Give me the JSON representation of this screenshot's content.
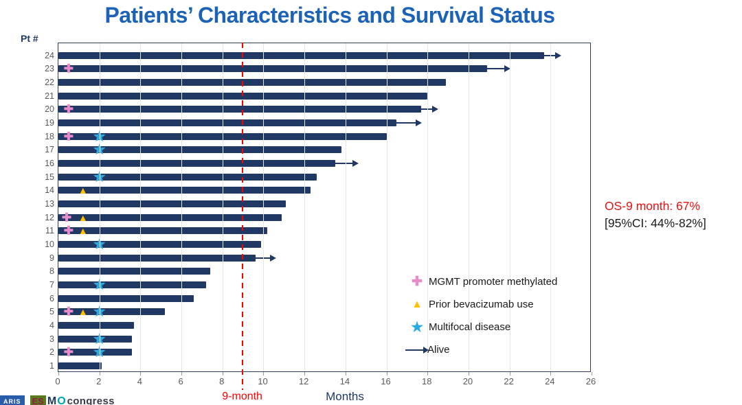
{
  "title": "Patients’ Characteristics and Survival Status",
  "annotation": {
    "os": "OS-9 month: 67%",
    "ci": "[95%CI: 44%-82%]"
  },
  "footer": {
    "logo_paris_fragment": "ARIS",
    "logo_es": "ES",
    "logo_m": "M",
    "logo_o": "O",
    "congress": "congress"
  },
  "colors": {
    "title": "#1C63B8",
    "bar": "#1F3864",
    "reference_line": "#FF0000",
    "mgmt": "#E78BCB",
    "bev": "#FFC000",
    "multifocal": "#29ABE2",
    "axis_text": "#595959",
    "gridline": "#E7E7E7"
  },
  "chart_data": {
    "type": "bar",
    "orientation": "horizontal",
    "xlabel": "Months",
    "ylabel_header": "Pt #",
    "xlim": [
      0,
      26
    ],
    "x_ticks": [
      0,
      2,
      4,
      6,
      8,
      10,
      12,
      14,
      16,
      18,
      20,
      22,
      24,
      26
    ],
    "grid": "vertical-light",
    "reference_line": {
      "x": 9,
      "label": "9-month",
      "style": "dashed",
      "color": "#FF0000"
    },
    "legend_position": "inside-lower-right",
    "legend": [
      {
        "marker": "mgmt",
        "label": "MGMT promoter methylated",
        "color": "#E78BCB"
      },
      {
        "marker": "bev",
        "label": "Prior bevacizumab use",
        "color": "#FFC000"
      },
      {
        "marker": "multifocal",
        "label": "Multifocal disease",
        "color": "#29ABE2"
      },
      {
        "marker": "alive",
        "label": "Alive",
        "color": "#1F3864"
      }
    ],
    "patients": [
      {
        "pt": 24,
        "months": 23.7,
        "alive": true,
        "arrow_to": 24.5,
        "markers": []
      },
      {
        "pt": 23,
        "months": 20.9,
        "alive": true,
        "arrow_to": 22.0,
        "markers": [
          {
            "type": "mgmt",
            "x": 0.5
          }
        ]
      },
      {
        "pt": 22,
        "months": 18.9,
        "alive": false,
        "markers": []
      },
      {
        "pt": 21,
        "months": 18.0,
        "alive": false,
        "markers": []
      },
      {
        "pt": 20,
        "months": 17.7,
        "alive": true,
        "arrow_to": 18.5,
        "markers": [
          {
            "type": "mgmt",
            "x": 0.5
          }
        ]
      },
      {
        "pt": 19,
        "months": 16.5,
        "alive": true,
        "arrow_to": 17.7,
        "markers": []
      },
      {
        "pt": 18,
        "months": 16.0,
        "alive": false,
        "markers": [
          {
            "type": "mgmt",
            "x": 0.5
          },
          {
            "type": "multifocal",
            "x": 2
          }
        ]
      },
      {
        "pt": 17,
        "months": 13.8,
        "alive": false,
        "markers": [
          {
            "type": "multifocal",
            "x": 2
          }
        ]
      },
      {
        "pt": 16,
        "months": 13.5,
        "alive": true,
        "arrow_to": 14.6,
        "markers": []
      },
      {
        "pt": 15,
        "months": 12.6,
        "alive": false,
        "markers": [
          {
            "type": "multifocal",
            "x": 2
          }
        ]
      },
      {
        "pt": 14,
        "months": 12.3,
        "alive": false,
        "markers": [
          {
            "type": "bev",
            "x": 1.2
          }
        ]
      },
      {
        "pt": 13,
        "months": 11.1,
        "alive": false,
        "markers": []
      },
      {
        "pt": 12,
        "months": 10.9,
        "alive": false,
        "markers": [
          {
            "type": "mgmt",
            "x": 0.4
          },
          {
            "type": "bev",
            "x": 1.2
          }
        ]
      },
      {
        "pt": 11,
        "months": 10.2,
        "alive": false,
        "markers": [
          {
            "type": "mgmt",
            "x": 0.5
          },
          {
            "type": "bev",
            "x": 1.2
          }
        ]
      },
      {
        "pt": 10,
        "months": 9.9,
        "alive": false,
        "markers": [
          {
            "type": "multifocal",
            "x": 2
          }
        ]
      },
      {
        "pt": 9,
        "months": 9.6,
        "alive": true,
        "arrow_to": 10.6,
        "markers": []
      },
      {
        "pt": 8,
        "months": 7.4,
        "alive": false,
        "markers": []
      },
      {
        "pt": 7,
        "months": 7.2,
        "alive": false,
        "markers": [
          {
            "type": "multifocal",
            "x": 2
          }
        ]
      },
      {
        "pt": 6,
        "months": 6.6,
        "alive": false,
        "markers": []
      },
      {
        "pt": 5,
        "months": 5.2,
        "alive": false,
        "markers": [
          {
            "type": "mgmt",
            "x": 0.5
          },
          {
            "type": "bev",
            "x": 1.2
          },
          {
            "type": "multifocal",
            "x": 2
          }
        ]
      },
      {
        "pt": 4,
        "months": 3.7,
        "alive": false,
        "markers": []
      },
      {
        "pt": 3,
        "months": 3.6,
        "alive": false,
        "markers": [
          {
            "type": "multifocal",
            "x": 2
          }
        ]
      },
      {
        "pt": 2,
        "months": 3.6,
        "alive": false,
        "markers": [
          {
            "type": "mgmt",
            "x": 0.5
          },
          {
            "type": "multifocal",
            "x": 2
          }
        ]
      },
      {
        "pt": 1,
        "months": 2.1,
        "alive": false,
        "markers": []
      }
    ]
  }
}
